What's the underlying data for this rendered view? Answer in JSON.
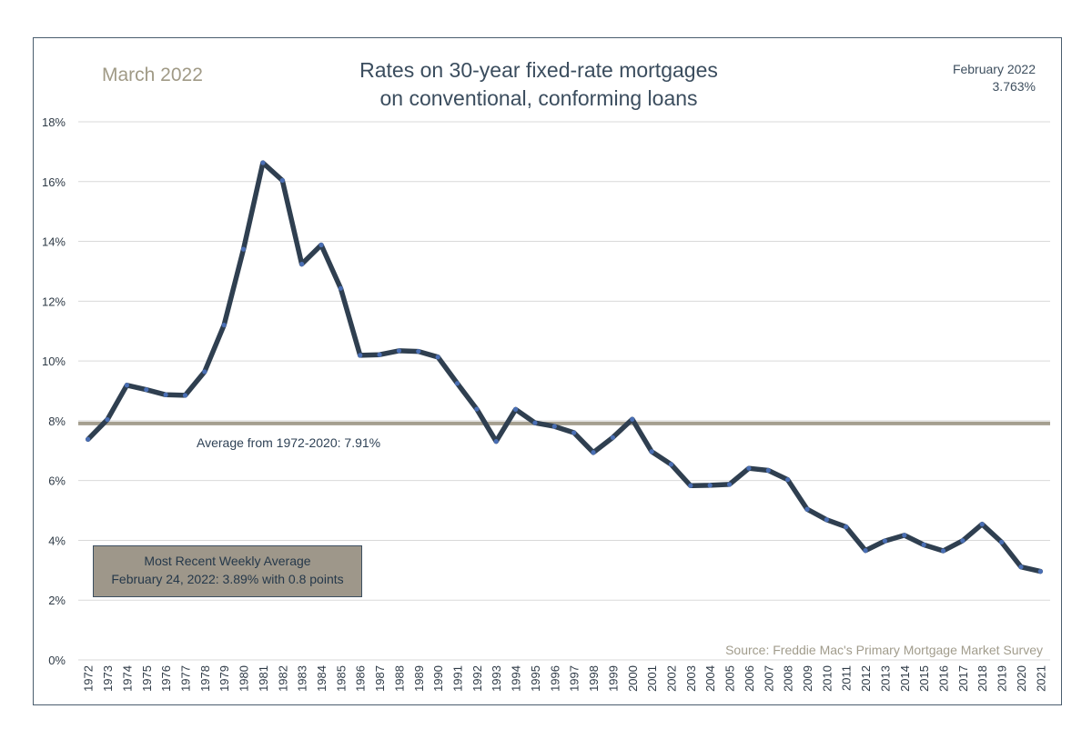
{
  "header": {
    "date_label": "March 2022",
    "title_line1": "Rates on 30-year fixed-rate mortgages",
    "title_line2": "on conventional, conforming loans",
    "latest_month": "February 2022",
    "latest_value": "3.763%"
  },
  "annotations": {
    "average_label": "Average from 1972-2020: 7.91%",
    "weekly_line1": "Most Recent Weekly Average",
    "weekly_line2": "February 24, 2022: 3.89% with 0.8 points",
    "source": "Source: Freddie Mac's Primary Mortgage Market Survey"
  },
  "colors": {
    "line": "#2f3f50",
    "marker": "#4a6fb5",
    "average_line": "#a59f8f",
    "grid": "#d9d9d9",
    "axis_text": "#2e3a46"
  },
  "chart_data": {
    "type": "line",
    "title": "Rates on 30-year fixed-rate mortgages on conventional, conforming loans",
    "xlabel": "",
    "ylabel": "",
    "ylim": [
      0,
      18
    ],
    "y_ticks": [
      0,
      2,
      4,
      6,
      8,
      10,
      12,
      14,
      16,
      18
    ],
    "y_tick_labels": [
      "0%",
      "2%",
      "4%",
      "6%",
      "8%",
      "10%",
      "12%",
      "14%",
      "16%",
      "18%"
    ],
    "grid": true,
    "categories": [
      "1972",
      "1973",
      "1974",
      "1975",
      "1976",
      "1977",
      "1978",
      "1979",
      "1980",
      "1981",
      "1982",
      "1983",
      "1984",
      "1985",
      "1986",
      "1987",
      "1988",
      "1989",
      "1990",
      "1991",
      "1992",
      "1993",
      "1994",
      "1995",
      "1996",
      "1997",
      "1998",
      "1999",
      "2000",
      "2001",
      "2002",
      "2003",
      "2004",
      "2005",
      "2006",
      "2007",
      "2008",
      "2009",
      "2010",
      "2011",
      "2012",
      "2013",
      "2014",
      "2015",
      "2016",
      "2017",
      "2018",
      "2019",
      "2020",
      "2021"
    ],
    "series": [
      {
        "values": [
          7.38,
          8.04,
          9.19,
          9.04,
          8.87,
          8.85,
          9.64,
          11.2,
          13.74,
          16.63,
          16.04,
          13.24,
          13.88,
          12.43,
          10.19,
          10.21,
          10.34,
          10.32,
          10.13,
          9.25,
          8.39,
          7.31,
          8.38,
          7.93,
          7.81,
          7.6,
          6.94,
          7.44,
          8.05,
          6.97,
          6.54,
          5.83,
          5.84,
          5.87,
          6.41,
          6.34,
          6.03,
          5.04,
          4.69,
          4.45,
          3.66,
          3.98,
          4.17,
          3.85,
          3.65,
          3.99,
          4.54,
          3.94,
          3.11,
          2.96
        ]
      }
    ],
    "average": {
      "value": 7.91,
      "label": "Average from 1972-2020: 7.91%"
    }
  }
}
